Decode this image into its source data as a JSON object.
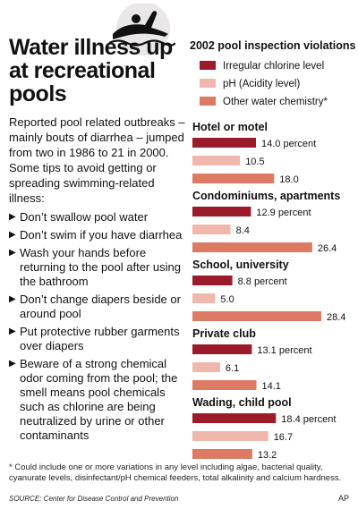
{
  "headline": "Water illness up at recreational pools",
  "intro": "Reported pool related outbreaks – mainly bouts of diarrhea – jumped from two in 1986 to 21 in 2000. Some tips to avoid getting or spreading swimming-related illness:",
  "tips": [
    "Don’t swallow pool water",
    "Don’t swim if you have diarrhea",
    "Wash your hands before returning to the pool after using the bathroom",
    "Don’t change diapers beside or around pool",
    "Put protective rubber garments over diapers",
    "Beware of a strong chemical odor coming from the pool; the smell means pool chemicals such as chlorine are being neutralized by urine or other contaminants"
  ],
  "icons": {
    "bullet": "triangle-bullet",
    "swimmer": "swimmer-icon"
  },
  "colors": {
    "irregular_chlorine": "#9b1b2a",
    "ph": "#f0b7ad",
    "other_chemistry": "#dd7a63"
  },
  "chart_data": {
    "type": "bar",
    "orientation": "horizontal",
    "title": "2002 pool inspection violations",
    "unit": "percent",
    "categories": [
      "Hotel or motel",
      "Condominiums, apartments",
      "School, university",
      "Private club",
      "Wading, child pool"
    ],
    "series": [
      {
        "name": "Irregular chlorine level",
        "color": "#9b1b2a",
        "values": [
          14.0,
          12.9,
          8.8,
          13.1,
          18.4
        ]
      },
      {
        "name": "pH (Acidity level)",
        "color": "#f0b7ad",
        "values": [
          10.5,
          8.4,
          5.0,
          6.1,
          16.7
        ]
      },
      {
        "name": "Other water chemistry*",
        "color": "#dd7a63",
        "values": [
          18.0,
          26.4,
          28.4,
          14.1,
          13.2
        ]
      }
    ],
    "value_labels": [
      [
        "14.0 percent",
        "10.5",
        "18.0"
      ],
      [
        "12.9 percent",
        "8.4",
        "26.4"
      ],
      [
        "8.8 percent",
        "5.0",
        "28.4"
      ],
      [
        "13.1 percent",
        "6.1",
        "14.1"
      ],
      [
        "18.4 percent",
        "16.7",
        "13.2"
      ]
    ],
    "xlim": [
      0,
      28.4
    ],
    "legend": "top",
    "grid": false
  },
  "footnote": "* Could include one or more variations in any level including algae, bacterial quality, cyanurate levels, disinfectant/pH chemical feeders, total alkalinity and calcium hardness.",
  "source": "SOURCE: Center for Disease Control and Prevention",
  "credit": "AP"
}
